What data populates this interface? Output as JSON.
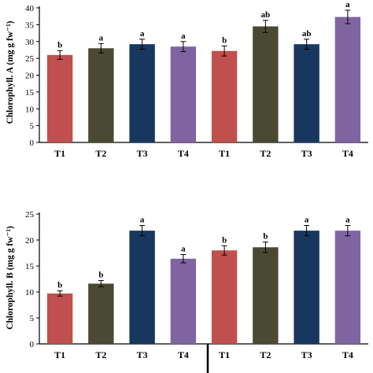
{
  "colors": {
    "T1": "#c0504d",
    "T2": "#4a4a32",
    "T3": "#17375e",
    "T4": "#8064a2",
    "axis": "#000000",
    "errorbar": "#000000"
  },
  "chart_data": [
    {
      "type": "bar",
      "ylabel": "Chlorophyll. A (mg g fw⁻¹)",
      "ylim": [
        0,
        40
      ],
      "yticks": [
        0,
        5,
        10,
        15,
        20,
        25,
        30,
        35,
        40
      ],
      "grid": false,
      "categories": [
        "T1",
        "T2",
        "T3",
        "T4",
        "T1",
        "T2",
        "T3",
        "T4"
      ],
      "values": [
        26.0,
        28.0,
        29.2,
        28.5,
        27.2,
        34.5,
        29.2,
        37.3
      ],
      "errors": [
        1.3,
        1.4,
        1.5,
        1.5,
        1.5,
        1.8,
        1.5,
        2.0
      ],
      "significance": [
        "b",
        "a",
        "a",
        "a",
        "b",
        "ab",
        "ab",
        "a"
      ]
    },
    {
      "type": "bar",
      "ylabel": "Chlorophyll. B (mg g fw⁻¹)",
      "ylim": [
        0,
        25
      ],
      "yticks": [
        0,
        5,
        10,
        15,
        20,
        25
      ],
      "grid": false,
      "categories": [
        "T1",
        "T2",
        "T3",
        "T4",
        "T1",
        "T2",
        "T3",
        "T4"
      ],
      "values": [
        9.7,
        11.6,
        21.8,
        16.4,
        18.0,
        18.6,
        21.8,
        21.8
      ],
      "errors": [
        0.5,
        0.6,
        1.0,
        0.8,
        0.9,
        1.0,
        1.0,
        1.0
      ],
      "significance": [
        "b",
        "b",
        "a",
        "a",
        "b",
        "b",
        "a",
        "a"
      ]
    }
  ]
}
